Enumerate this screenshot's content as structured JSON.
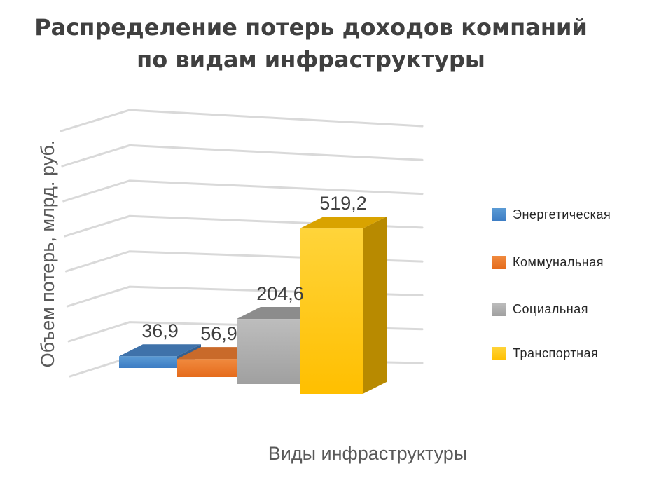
{
  "chart_data": {
    "type": "bar",
    "title": "Распределение потерь доходов компаний по видам инфраструктуры",
    "title_lines": [
      "Распределение потерь доходов компаний",
      "по видам инфраструктуры"
    ],
    "xlabel": "Виды инфраструктуры",
    "ylabel": "Объем потерь, млрд. руб.",
    "ylim": [
      0,
      700
    ],
    "grid": true,
    "legend_position": "right",
    "series": [
      {
        "name": "Энергетическая",
        "value": 36.9,
        "label": "36,9",
        "color": "#4a86c8"
      },
      {
        "name": "Коммунальная",
        "value": 56.9,
        "label": "56,9",
        "color": "#ed7d31"
      },
      {
        "name": "Социальная",
        "value": 204.6,
        "label": "204,6",
        "color": "#a5a5a5"
      },
      {
        "name": "Транспортная",
        "value": 519.2,
        "label": "519,2",
        "color": "#ffc000"
      }
    ]
  }
}
